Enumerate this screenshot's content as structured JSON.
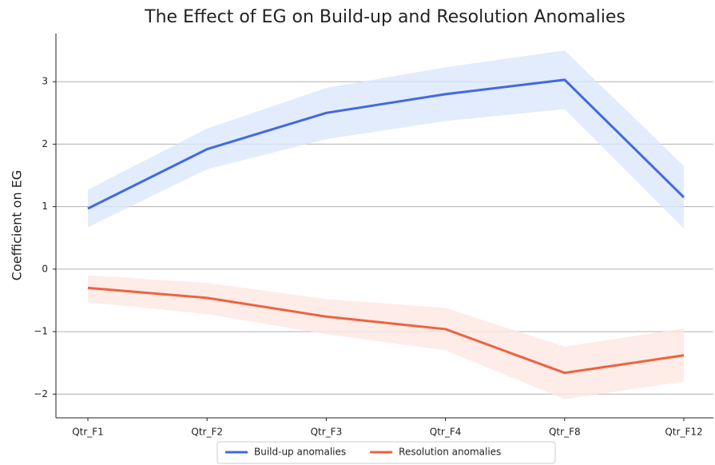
{
  "chart_data": {
    "type": "line",
    "title": "The Effect of EG on Build-up and Resolution Anomalies",
    "y_label": "Coefficient on EG",
    "categories": [
      "Qtr_F1",
      "Qtr_F2",
      "Qtr_F3",
      "Qtr_F4",
      "Qtr_F8",
      "Qtr_F12"
    ],
    "series": [
      {
        "name": "Build-up anomalies",
        "color": "#4169e1",
        "band_color": "#dbe7fb",
        "values": [
          0.97,
          1.92,
          2.5,
          2.8,
          3.03,
          1.15
        ],
        "upper": [
          1.27,
          2.25,
          2.9,
          3.23,
          3.5,
          1.65
        ],
        "lower": [
          0.67,
          1.6,
          2.08,
          2.37,
          2.56,
          0.65
        ]
      },
      {
        "name": "Resolution anomalies",
        "color": "#ee6240",
        "band_color": "#fde7e2",
        "values": [
          -0.3,
          -0.46,
          -0.76,
          -0.96,
          -1.66,
          -1.38
        ],
        "upper": [
          -0.1,
          -0.22,
          -0.48,
          -0.62,
          -1.24,
          -0.95
        ],
        "lower": [
          -0.53,
          -0.72,
          -1.04,
          -1.3,
          -2.08,
          -1.8
        ]
      }
    ],
    "ylim": [
      -2.38,
      3.77
    ],
    "yticks": [
      {
        "value": -2,
        "label": "−2"
      },
      {
        "value": -1,
        "label": "−1"
      },
      0,
      1,
      2,
      3
    ],
    "grid": true,
    "legend": "bottom"
  }
}
